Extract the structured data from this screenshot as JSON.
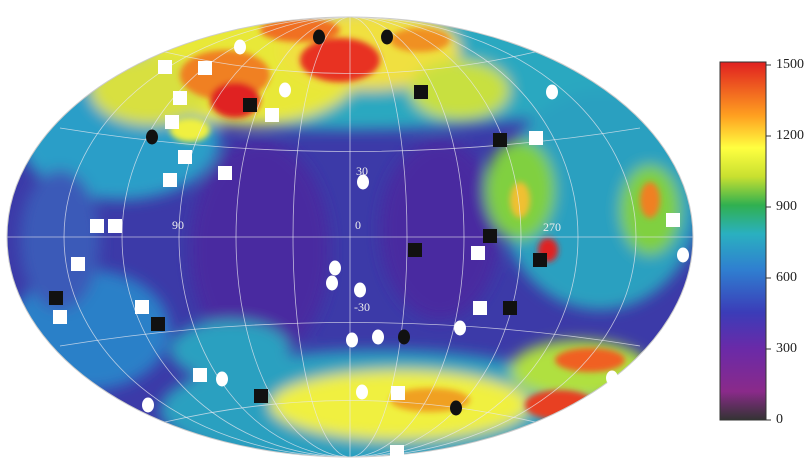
{
  "map": {
    "longitude_labels": [
      "90",
      "0",
      "270"
    ],
    "latitude_labels": [
      "30",
      "-30"
    ]
  },
  "colorbar": {
    "range": [
      0,
      1500
    ],
    "ticks": [
      0,
      300,
      600,
      900,
      1200,
      1500
    ]
  }
}
